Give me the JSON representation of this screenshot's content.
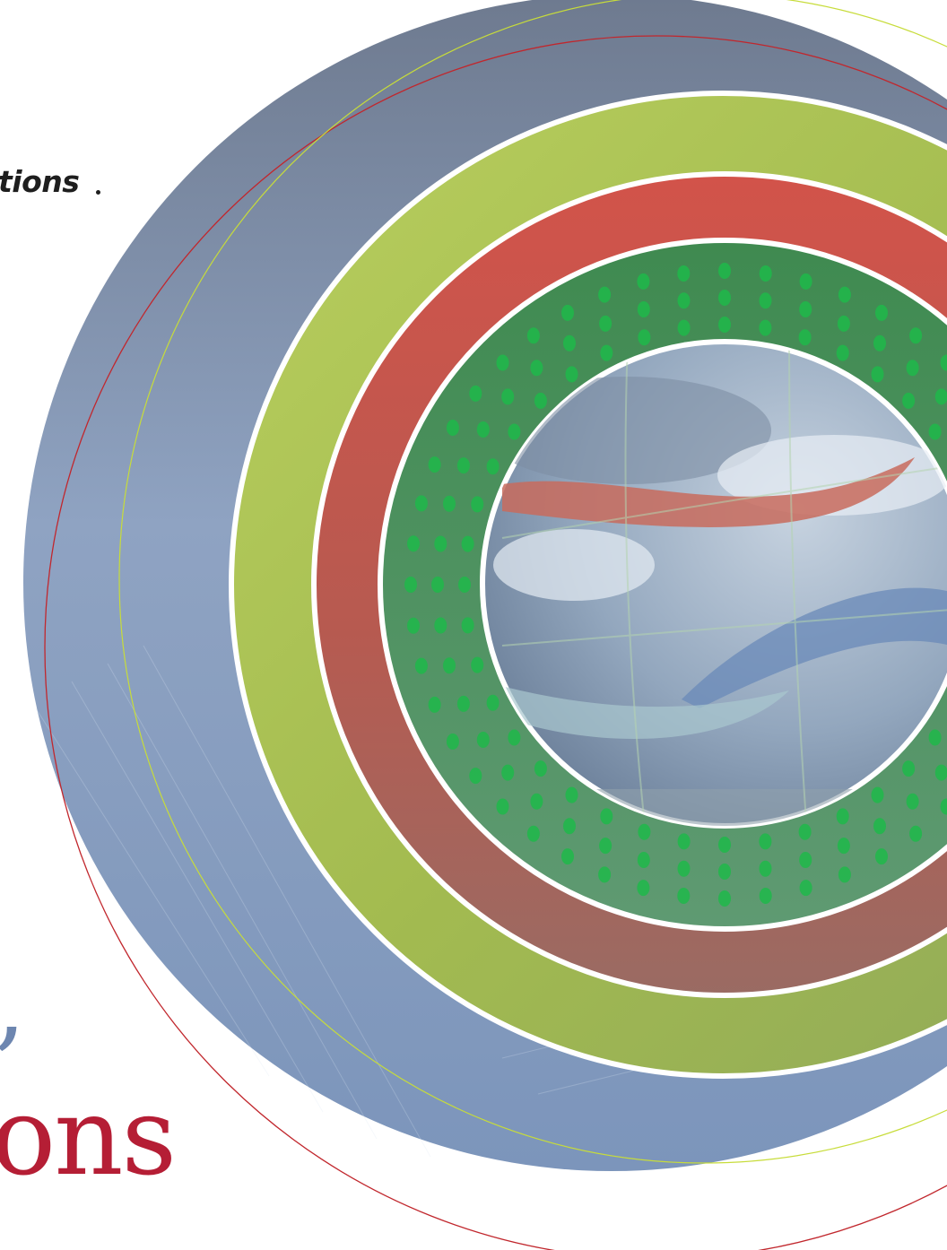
{
  "brand": {
    "text": "tions"
  },
  "headline": {
    "fragment": "ons",
    "punct": ","
  },
  "artwork": {
    "description_icon": "concentric-rings-illustration",
    "colors": {
      "outer_disc": "#7a879c",
      "lime_ring": "#a9bd5c",
      "red_ring": "#c85449",
      "green_ring": "#4c8d5b",
      "sky": "#9eb2c9",
      "white_separator": "#ffffff",
      "red_outline": "#c1272d",
      "lime_outline": "#c7dc3a",
      "headline": "#b51e35"
    }
  }
}
